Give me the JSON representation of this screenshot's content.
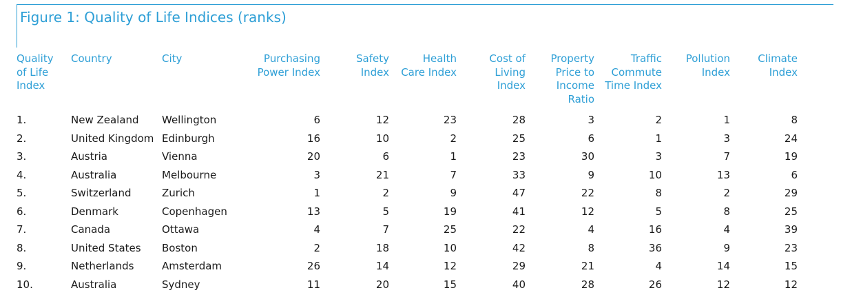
{
  "figure": {
    "title": "Figure 1: Quality of Life Indices (ranks)"
  },
  "colors": {
    "accent": "#2e9fd6",
    "text": "#1a1a1a"
  },
  "chart_data": {
    "type": "table",
    "title": "Figure 1: Quality of Life Indices (ranks)",
    "columns": [
      "Quality of Life Index",
      "Country",
      "City",
      "Purchasing Power Index",
      "Safety Index",
      "Health Care Index",
      "Cost of Living Index",
      "Property Price to Income Ratio",
      "Traffic Commute Time Index",
      "Pollution Index",
      "Climate Index"
    ],
    "rows": [
      [
        "1.",
        "New Zealand",
        "Wellington",
        "6",
        "12",
        "23",
        "28",
        "3",
        "2",
        "1",
        "8"
      ],
      [
        "2.",
        "United Kingdom",
        "Edinburgh",
        "16",
        "10",
        "2",
        "25",
        "6",
        "1",
        "3",
        "24"
      ],
      [
        "3.",
        "Austria",
        "Vienna",
        "20",
        "6",
        "1",
        "23",
        "30",
        "3",
        "7",
        "19"
      ],
      [
        "4.",
        "Australia",
        "Melbourne",
        "3",
        "21",
        "7",
        "33",
        "9",
        "10",
        "13",
        "6"
      ],
      [
        "5.",
        "Switzerland",
        "Zurich",
        "1",
        "2",
        "9",
        "47",
        "22",
        "8",
        "2",
        "29"
      ],
      [
        "6.",
        "Denmark",
        "Copenhagen",
        "13",
        "5",
        "19",
        "41",
        "12",
        "5",
        "8",
        "25"
      ],
      [
        "7.",
        "Canada",
        "Ottawa",
        "4",
        "7",
        "25",
        "22",
        "4",
        "16",
        "4",
        "39"
      ],
      [
        "8.",
        "United States",
        "Boston",
        "2",
        "18",
        "10",
        "42",
        "8",
        "36",
        "9",
        "23"
      ],
      [
        "9.",
        "Netherlands",
        "Amsterdam",
        "26",
        "14",
        "12",
        "29",
        "21",
        "4",
        "14",
        "15"
      ],
      [
        "10.",
        "Australia",
        "Sydney",
        "11",
        "20",
        "15",
        "40",
        "28",
        "26",
        "12",
        "12"
      ]
    ]
  }
}
